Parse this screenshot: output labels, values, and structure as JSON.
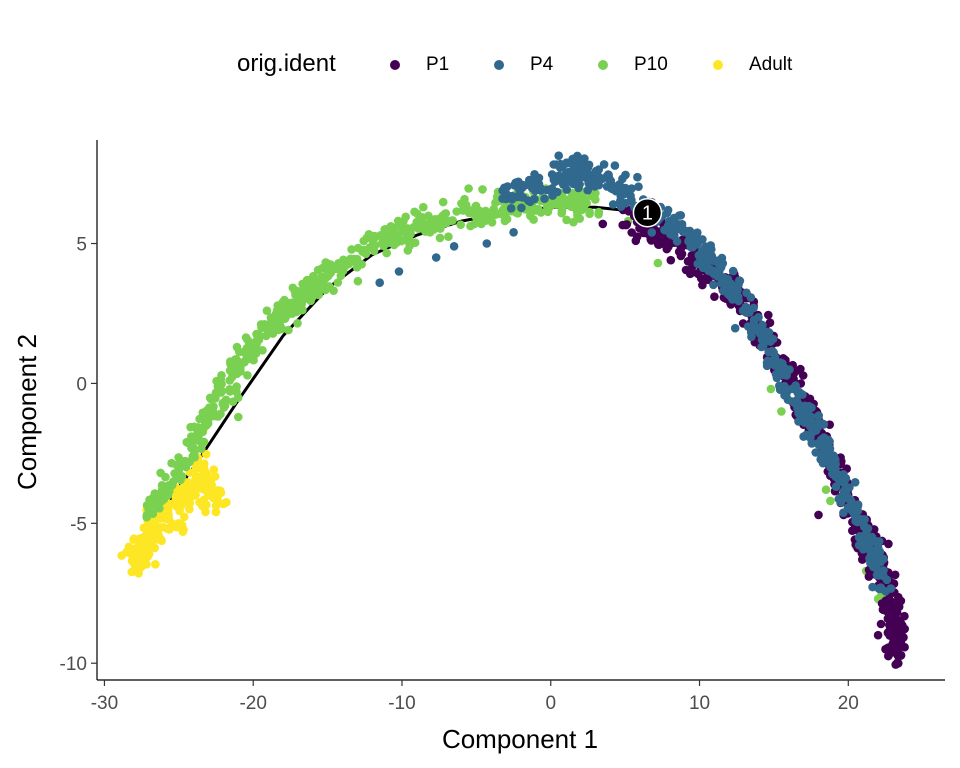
{
  "legend": {
    "title": "orig.ident",
    "items": [
      {
        "label": "P1",
        "color": "#440154"
      },
      {
        "label": "P4",
        "color": "#31688E"
      },
      {
        "label": "P10",
        "color": "#7AD151"
      },
      {
        "label": "Adult",
        "color": "#FDE725"
      }
    ]
  },
  "chart_data": {
    "type": "scatter",
    "title": "",
    "xlabel": "Component 1",
    "ylabel": "Component 2",
    "xlim": [
      -30.5,
      26.5
    ],
    "ylim": [
      -10.6,
      8.7
    ],
    "x_ticks": [
      -30,
      -20,
      -10,
      0,
      10,
      20
    ],
    "x_tick_labels": [
      "-30",
      "-20",
      "-10",
      "0",
      "10",
      "20"
    ],
    "y_ticks": [
      -10,
      -5,
      0,
      5
    ],
    "y_tick_labels": [
      "-10",
      "-5",
      "0",
      "5"
    ],
    "grid": false,
    "legend_position": "top",
    "branch_point": {
      "label": "1",
      "x": 6.5,
      "y": 6.1
    },
    "trajectory": {
      "x": [
        -27.5,
        -24,
        -21,
        -18,
        -15,
        -12,
        -9,
        -6,
        -3,
        0,
        3,
        6.5
      ],
      "y": [
        -5.5,
        -3.0,
        -0.6,
        1.7,
        3.4,
        4.6,
        5.3,
        5.8,
        6.1,
        6.3,
        6.3,
        6.1
      ]
    },
    "series": [
      {
        "name": "P1",
        "color": "#440154",
        "path": {
          "x": [
            5,
            8,
            11,
            13,
            15,
            17,
            18.5,
            20,
            21.5,
            22.5,
            23.2,
            23.3
          ],
          "y": [
            6.0,
            5.2,
            3.9,
            2.7,
            1.2,
            -0.7,
            -2.5,
            -4.2,
            -5.8,
            -7.2,
            -8.6,
            -9.6
          ]
        },
        "spread": 0.35,
        "count": 500,
        "points": [
          {
            "x": 3.5,
            "y": 5.7
          },
          {
            "x": 7.8,
            "y": 4.8
          },
          {
            "x": 11,
            "y": 3.1
          },
          {
            "x": 18,
            "y": -4.7
          },
          {
            "x": 22,
            "y": -9.0
          },
          {
            "x": 22.5,
            "y": -9.5
          },
          {
            "x": 23,
            "y": -9.4
          },
          {
            "x": 22.8,
            "y": -8.8
          },
          {
            "x": 23.3,
            "y": -9.7
          },
          {
            "x": 22.2,
            "y": -8.6
          }
        ]
      },
      {
        "name": "P4",
        "color": "#31688E",
        "path": {
          "x": [
            -3,
            0,
            2,
            4,
            6.5,
            9,
            11,
            13,
            15,
            17,
            19,
            21,
            22.5
          ],
          "y": [
            6.8,
            7.3,
            7.6,
            7.4,
            6.2,
            5.4,
            4.2,
            2.8,
            1.0,
            -1.0,
            -3.0,
            -5.2,
            -7.4
          ]
        },
        "spread": 0.3,
        "count": 560,
        "points": [
          {
            "x": -10.2,
            "y": 4.0
          },
          {
            "x": -11.5,
            "y": 3.6
          },
          {
            "x": -7.7,
            "y": 4.5
          },
          {
            "x": -6.5,
            "y": 4.9
          },
          {
            "x": -4.3,
            "y": 5.0
          },
          {
            "x": -2.5,
            "y": 5.4
          },
          {
            "x": 4.2,
            "y": 6.4
          },
          {
            "x": 1.5,
            "y": 7.8
          },
          {
            "x": 2.5,
            "y": 7.7
          }
        ]
      },
      {
        "name": "P10",
        "color": "#7AD151",
        "path": {
          "x": [
            -27,
            -25,
            -23,
            -21,
            -19,
            -17,
            -15,
            -12,
            -9,
            -6,
            -3,
            0,
            3
          ],
          "y": [
            -4.8,
            -3.0,
            -1.2,
            0.6,
            2.0,
            3.0,
            3.8,
            4.9,
            5.6,
            6.1,
            6.3,
            6.5,
            6.5
          ]
        },
        "spread": 0.3,
        "count": 560,
        "points": [
          {
            "x": -21,
            "y": -1.2
          },
          {
            "x": 2.8,
            "y": 7.0
          },
          {
            "x": 3.0,
            "y": 6.8
          },
          {
            "x": 5.2,
            "y": 5.8
          },
          {
            "x": 7.2,
            "y": 4.3
          },
          {
            "x": 14.8,
            "y": -0.2
          },
          {
            "x": 15.5,
            "y": -1.0
          },
          {
            "x": 18.5,
            "y": -3.8
          },
          {
            "x": 18.8,
            "y": -4.2
          },
          {
            "x": 20.5,
            "y": -5.8
          },
          {
            "x": 21.2,
            "y": -6.7
          },
          {
            "x": 22.2,
            "y": -7.6
          },
          {
            "x": 22.5,
            "y": -7.9
          },
          {
            "x": 22.0,
            "y": -7.7
          }
        ]
      },
      {
        "name": "Adult",
        "color": "#FDE725",
        "path": {
          "x": [
            -28,
            -27.5,
            -27,
            -26,
            -25,
            -24,
            -23,
            -22.5
          ],
          "y": [
            -6.5,
            -5.8,
            -5.3,
            -4.8,
            -4.3,
            -3.8,
            -3.3,
            -4.6
          ]
        },
        "spread": 0.4,
        "count": 240,
        "points": [
          {
            "x": -23.3,
            "y": -1.6
          },
          {
            "x": -22.5,
            "y": -4.6
          },
          {
            "x": -27.5,
            "y": -6.4
          },
          {
            "x": -27,
            "y": -6.1
          },
          {
            "x": -25,
            "y": -5.0
          }
        ]
      }
    ]
  }
}
